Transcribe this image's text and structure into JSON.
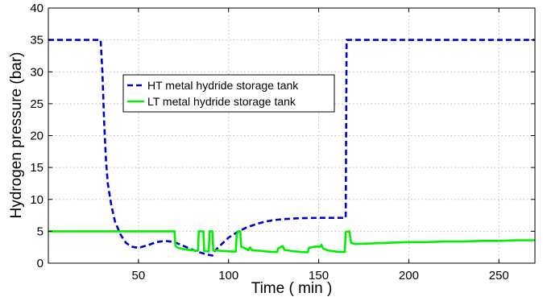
{
  "chart_data": {
    "type": "line",
    "title": "",
    "xlabel": "Time ( min )",
    "ylabel": "Hydrogen pressure (bar)",
    "xlim": [
      0,
      270
    ],
    "ylim": [
      0,
      40
    ],
    "xticks": [
      50,
      100,
      150,
      200,
      250
    ],
    "yticks": [
      0,
      5,
      10,
      15,
      20,
      25,
      30,
      35,
      40
    ],
    "grid": true,
    "legend_position": "upper-left-center",
    "series": [
      {
        "name": "HT metal hydride storage tank",
        "color": "#0000cc",
        "style": "dashed",
        "points": [
          [
            0,
            35
          ],
          [
            29,
            35
          ],
          [
            30,
            30
          ],
          [
            31,
            22
          ],
          [
            32,
            16
          ],
          [
            33,
            12.5
          ],
          [
            35,
            9
          ],
          [
            37,
            6.5
          ],
          [
            40,
            4.5
          ],
          [
            43,
            3.2
          ],
          [
            46,
            2.6
          ],
          [
            50,
            2.4
          ],
          [
            55,
            2.8
          ],
          [
            60,
            3.3
          ],
          [
            65,
            3.5
          ],
          [
            70,
            3.3
          ],
          [
            75,
            2.7
          ],
          [
            80,
            2.1
          ],
          [
            85,
            1.6
          ],
          [
            89,
            1.3
          ],
          [
            91,
            1.2
          ],
          [
            92,
            1.8
          ],
          [
            94,
            2.4
          ],
          [
            97,
            3.2
          ],
          [
            100,
            4.0
          ],
          [
            105,
            4.9
          ],
          [
            110,
            5.6
          ],
          [
            115,
            6.1
          ],
          [
            120,
            6.5
          ],
          [
            125,
            6.75
          ],
          [
            130,
            6.9
          ],
          [
            140,
            7.05
          ],
          [
            150,
            7.1
          ],
          [
            160,
            7.1
          ],
          [
            165,
            7.1
          ],
          [
            165.5,
            35
          ],
          [
            270,
            35
          ]
        ]
      },
      {
        "name": "LT metal hydride storage tank",
        "color": "#00ee00",
        "style": "solid",
        "points": [
          [
            0,
            5
          ],
          [
            70,
            5
          ],
          [
            70.5,
            2.7
          ],
          [
            72,
            2.4
          ],
          [
            75,
            2.2
          ],
          [
            80,
            2.0
          ],
          [
            83,
            1.95
          ],
          [
            83.5,
            5
          ],
          [
            86,
            5
          ],
          [
            86.5,
            1.9
          ],
          [
            89,
            1.85
          ],
          [
            89.5,
            5
          ],
          [
            91,
            5
          ],
          [
            91.5,
            2.0
          ],
          [
            95,
            1.95
          ],
          [
            100,
            1.85
          ],
          [
            104,
            1.8
          ],
          [
            104.5,
            4.5
          ],
          [
            105.5,
            5
          ],
          [
            106.5,
            5
          ],
          [
            107,
            2.6
          ],
          [
            110,
            2.2
          ],
          [
            111,
            2.0
          ],
          [
            112,
            2.5
          ],
          [
            113,
            2.0
          ],
          [
            117,
            1.95
          ],
          [
            120,
            1.85
          ],
          [
            125,
            1.75
          ],
          [
            127,
            1.75
          ],
          [
            127.5,
            2.3
          ],
          [
            130,
            2.7
          ],
          [
            131,
            2.1
          ],
          [
            135,
            1.9
          ],
          [
            140,
            1.75
          ],
          [
            144,
            1.7
          ],
          [
            144.5,
            2.4
          ],
          [
            148,
            2.6
          ],
          [
            151,
            2.6
          ],
          [
            151.5,
            2.9
          ],
          [
            152.5,
            2.3
          ],
          [
            155,
            2.0
          ],
          [
            160,
            1.8
          ],
          [
            164.5,
            1.75
          ],
          [
            165,
            4.9
          ],
          [
            167,
            5
          ],
          [
            168,
            3.2
          ],
          [
            170,
            3.0
          ],
          [
            180,
            3.1
          ],
          [
            190,
            3.2
          ],
          [
            200,
            3.3
          ],
          [
            210,
            3.3
          ],
          [
            220,
            3.4
          ],
          [
            230,
            3.4
          ],
          [
            240,
            3.5
          ],
          [
            250,
            3.5
          ],
          [
            260,
            3.6
          ],
          [
            270,
            3.6
          ]
        ]
      }
    ]
  }
}
